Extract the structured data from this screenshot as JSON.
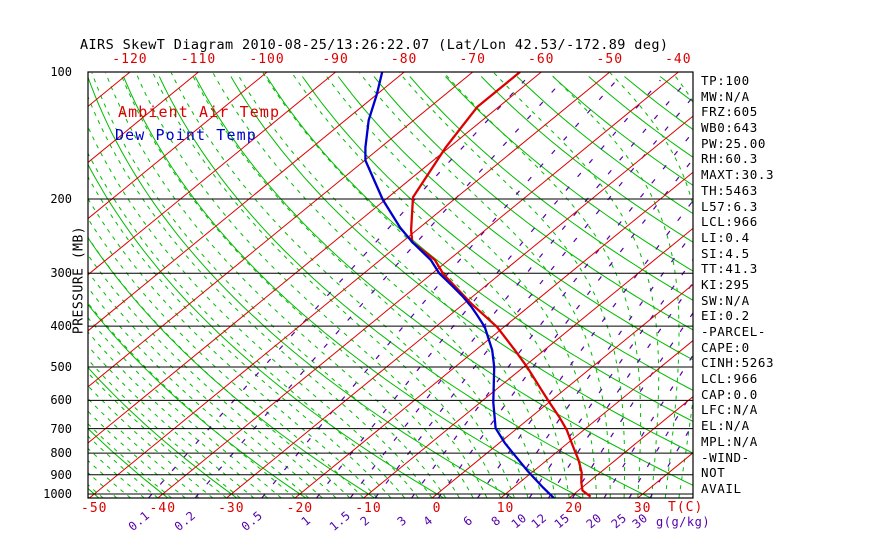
{
  "title": "AIRS SkewT Diagram 2010-08-25/13:26:22.07 (Lat/Lon 42.53/-172.89 deg)",
  "legend": {
    "ambient": "Ambient Air Temp",
    "dewpoint": "Dew Point Temp"
  },
  "left_axis": {
    "label": "PRESSURE (MB)",
    "ticks": [
      100,
      200,
      300,
      400,
      500,
      600,
      700,
      800,
      900,
      1000
    ]
  },
  "top_axis": {
    "ticks": [
      -120,
      -110,
      -100,
      -90,
      -80,
      -70,
      -60,
      -50,
      -40
    ]
  },
  "bottom_axis": {
    "temp_ticks": [
      -50,
      -40,
      -30,
      -20,
      -10,
      0,
      10,
      20,
      30
    ],
    "temp_unit": "T(C)",
    "mixing_unit": "g(g/kg)"
  },
  "right_panel": {
    "lines": [
      "TP:100",
      "MW:N/A",
      "FRZ:605",
      "WB0:643",
      "PW:25.00",
      "RH:60.3",
      "MAXT:30.3",
      "TH:5463",
      "L57:6.3",
      "LCL:966",
      "LI:0.4",
      "SI:4.5",
      "TT:41.3",
      "KI:295",
      "SW:N/A",
      "EI:0.2",
      "-PARCEL-",
      "CAPE:0",
      "CINH:5263",
      "LCL:966",
      "CAP:0.0",
      "LFC:N/A",
      "EL:N/A",
      "MPL:N/A",
      "-WIND-",
      "NOT",
      "AVAIL"
    ]
  },
  "colors": {
    "temp_curve": "#dd0000",
    "dewpoint_curve": "#0000cc",
    "isotherm": "#dd0000",
    "adiabat": "#00bb00",
    "mixing_ratio": "#5500aa",
    "axis": "#000000",
    "title_text": "#000000"
  },
  "chart_data": {
    "type": "line",
    "title": "AIRS SkewT Diagram 2010-08-25/13:26:22.07 (Lat/Lon 42.53/-172.89 deg)",
    "x_axis": {
      "label": "T(C)",
      "bottom_tick_range": [
        -50,
        30
      ],
      "top_tick_range": [
        -120,
        -40
      ],
      "tick_step": 10
    },
    "y_axis": {
      "label": "PRESSURE (MB)",
      "scale": "log",
      "range": [
        100,
        1022
      ]
    },
    "grid": {
      "isotherms_c": {
        "min": -120,
        "max": 30,
        "step": 10
      },
      "dry_adiabats_theta_c": {
        "min": -50,
        "max": 180,
        "step": 10
      },
      "wet_adiabats_thetaw_c": {
        "min": -60,
        "max": 40,
        "step": 2
      },
      "mixing_ratio_g_kg": [
        0.1,
        0.2,
        0.5,
        1,
        1.5,
        2,
        3,
        4,
        6,
        8,
        10,
        12,
        15,
        20,
        25,
        30
      ]
    },
    "series": [
      {
        "name": "Ambient Air Temp",
        "color": "#dd0000",
        "points_p_t": [
          [
            100,
            -63.1
          ],
          [
            121,
            -63.1
          ],
          [
            151,
            -60.5
          ],
          [
            198,
            -56.4
          ],
          [
            237,
            -50.8
          ],
          [
            253,
            -48.5
          ],
          [
            279,
            -42.0
          ],
          [
            301,
            -38.3
          ],
          [
            354,
            -28.9
          ],
          [
            402,
            -21.0
          ],
          [
            456,
            -14.3
          ],
          [
            500,
            -9.5
          ],
          [
            568,
            -3.2
          ],
          [
            607,
            0.1
          ],
          [
            658,
            4.2
          ],
          [
            705,
            7.5
          ],
          [
            772,
            11.4
          ],
          [
            833,
            14.7
          ],
          [
            890,
            17.3
          ],
          [
            939,
            19.0
          ],
          [
            981,
            20.6
          ],
          [
            1015,
            22.9
          ]
        ]
      },
      {
        "name": "Dew Point Temp",
        "color": "#0000cc",
        "points_p_t": [
          [
            100,
            -83.2
          ],
          [
            113,
            -80.0
          ],
          [
            130,
            -76.6
          ],
          [
            151,
            -72.2
          ],
          [
            162,
            -69.9
          ],
          [
            201,
            -60.3
          ],
          [
            234,
            -52.8
          ],
          [
            253,
            -48.5
          ],
          [
            279,
            -42.6
          ],
          [
            300,
            -39.0
          ],
          [
            320,
            -35.1
          ],
          [
            340,
            -31.5
          ],
          [
            361,
            -28.2
          ],
          [
            377,
            -26.0
          ],
          [
            402,
            -22.8
          ],
          [
            456,
            -17.6
          ],
          [
            500,
            -14.3
          ],
          [
            607,
            -8.1
          ],
          [
            698,
            -3.2
          ],
          [
            757,
            0.8
          ],
          [
            812,
            4.6
          ],
          [
            880,
            9.0
          ],
          [
            965,
            14.3
          ],
          [
            1033,
            18.4
          ]
        ]
      }
    ]
  }
}
